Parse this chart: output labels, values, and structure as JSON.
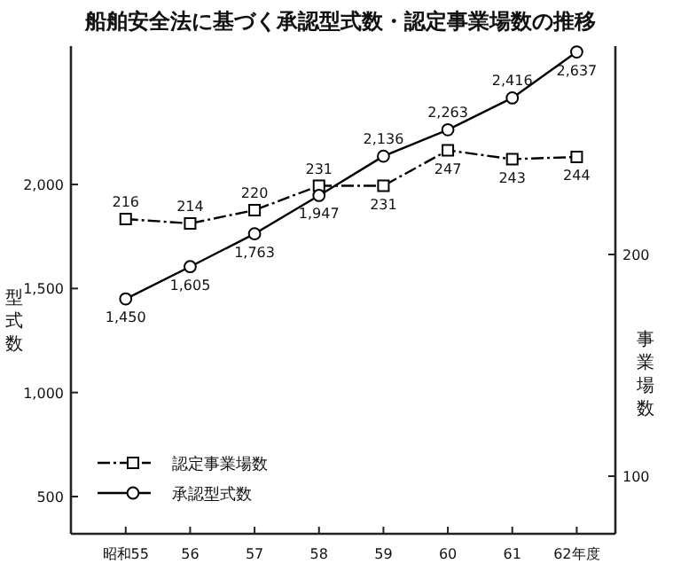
{
  "chart_data": {
    "type": "line",
    "title": "船舶安全法に基づく承認型式数・認定事業場数の推移",
    "ylabel": "型式数",
    "y2label": "事業場数",
    "categories": [
      "昭和55",
      "56",
      "57",
      "58",
      "59",
      "60",
      "61",
      "62年度"
    ],
    "series": [
      {
        "name": "認定事業場数",
        "color": "#000000",
        "axis": "y2",
        "marker": "square",
        "line_style": "dashed",
        "values": [
          216,
          214,
          220,
          231,
          231,
          247,
          243,
          244
        ]
      },
      {
        "name": "承認型式数",
        "color": "#000000",
        "marker": "circle",
        "line_style": "solid",
        "values": [
          1450,
          1605,
          1763,
          1947,
          2136,
          2263,
          2416,
          2637
        ],
        "value_labels": [
          "1,450",
          "1,605",
          "1,763",
          "1,947",
          "2,136",
          "2,263",
          "2,416",
          "2,637"
        ]
      }
    ],
    "ylim": [
      321,
      2665
    ],
    "yticks": [
      500,
      {
        "value": 1000,
        "label": "1,000"
      },
      {
        "value": 1500,
        "label": "1,500"
      },
      {
        "value": 2000,
        "label": "2,000"
      }
    ],
    "y2lim": [
      74,
      294
    ],
    "y2ticks": [
      100,
      200
    ],
    "data_labels": true,
    "grid": false,
    "legend": "bottom left"
  }
}
